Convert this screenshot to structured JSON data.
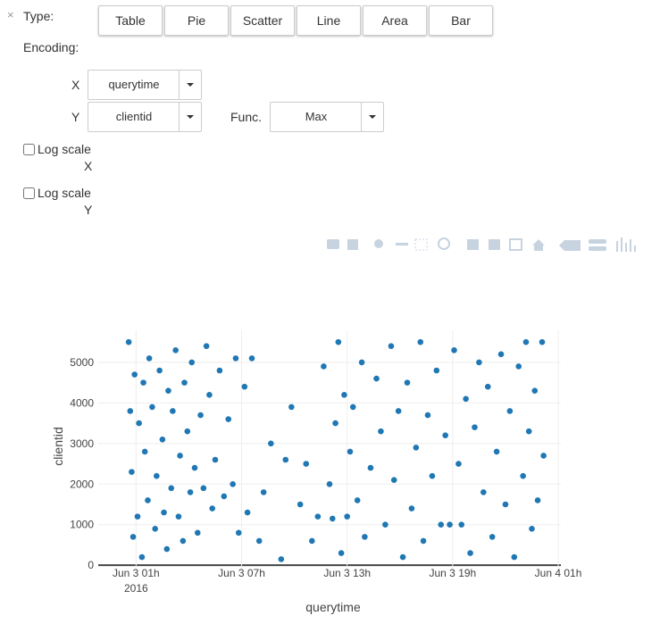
{
  "controls": {
    "close": "×",
    "type_label": "Type:",
    "types": [
      "Table",
      "Pie",
      "Scatter",
      "Line",
      "Area",
      "Bar"
    ],
    "encoding_label": "Encoding:",
    "x_label": "X",
    "x_field": "querytime",
    "y_label": "Y",
    "y_field": "clientid",
    "func_label": "Func.",
    "func": "Max",
    "log_x": [
      "Log scale",
      "X"
    ],
    "log_y": [
      "Log scale",
      "Y"
    ]
  },
  "chart_data": {
    "type": "scatter",
    "x_label": "querytime",
    "y_label": "clientid",
    "color": "#1f77b4",
    "grid": true,
    "xlim": [
      "2016-06-02 22:51",
      "2016-06-04 01:09"
    ],
    "ylim": [
      -150,
      5790
    ],
    "xticks": [
      {
        "value": "2016-06-03 01:00",
        "label": "Jun 3 01h",
        "sublabel": "2016"
      },
      {
        "value": "2016-06-03 07:00",
        "label": "Jun 3 07h"
      },
      {
        "value": "2016-06-03 13:00",
        "label": "Jun 3 13h"
      },
      {
        "value": "2016-06-03 19:00",
        "label": "Jun 3 19h"
      },
      {
        "value": "2016-06-04 01:00",
        "label": "Jun 4 01h"
      }
    ],
    "yticks": [
      0,
      1000,
      2000,
      3000,
      4000,
      5000
    ],
    "x": [
      "2016-06-03 00:35",
      "2016-06-03 00:40",
      "2016-06-03 00:45",
      "2016-06-03 00:50",
      "2016-06-03 00:55",
      "2016-06-03 01:05",
      "2016-06-03 01:10",
      "2016-06-03 01:20",
      "2016-06-03 01:25",
      "2016-06-03 01:30",
      "2016-06-03 01:40",
      "2016-06-03 01:45",
      "2016-06-03 01:55",
      "2016-06-03 02:05",
      "2016-06-03 02:10",
      "2016-06-03 02:20",
      "2016-06-03 02:30",
      "2016-06-03 02:35",
      "2016-06-03 02:45",
      "2016-06-03 02:50",
      "2016-06-03 03:00",
      "2016-06-03 03:05",
      "2016-06-03 03:15",
      "2016-06-03 03:25",
      "2016-06-03 03:30",
      "2016-06-03 03:40",
      "2016-06-03 03:45",
      "2016-06-03 03:55",
      "2016-06-03 04:05",
      "2016-06-03 04:10",
      "2016-06-03 04:20",
      "2016-06-03 04:30",
      "2016-06-03 04:40",
      "2016-06-03 04:50",
      "2016-06-03 05:00",
      "2016-06-03 05:10",
      "2016-06-03 05:20",
      "2016-06-03 05:30",
      "2016-06-03 05:45",
      "2016-06-03 06:00",
      "2016-06-03 06:15",
      "2016-06-03 06:30",
      "2016-06-03 06:40",
      "2016-06-03 06:50",
      "2016-06-03 07:10",
      "2016-06-03 07:20",
      "2016-06-03 07:35",
      "2016-06-03 08:00",
      "2016-06-03 08:15",
      "2016-06-03 08:40",
      "2016-06-03 09:15",
      "2016-06-03 09:30",
      "2016-06-03 09:50",
      "2016-06-03 10:20",
      "2016-06-03 10:40",
      "2016-06-03 11:00",
      "2016-06-03 11:20",
      "2016-06-03 11:40",
      "2016-06-03 12:00",
      "2016-06-03 12:10",
      "2016-06-03 12:20",
      "2016-06-03 12:30",
      "2016-06-03 12:40",
      "2016-06-03 12:50",
      "2016-06-03 13:00",
      "2016-06-03 13:10",
      "2016-06-03 13:20",
      "2016-06-03 13:35",
      "2016-06-03 13:50",
      "2016-06-03 14:00",
      "2016-06-03 14:20",
      "2016-06-03 14:40",
      "2016-06-03 14:55",
      "2016-06-03 15:10",
      "2016-06-03 15:30",
      "2016-06-03 15:40",
      "2016-06-03 15:55",
      "2016-06-03 16:10",
      "2016-06-03 16:25",
      "2016-06-03 16:40",
      "2016-06-03 16:55",
      "2016-06-03 17:10",
      "2016-06-03 17:20",
      "2016-06-03 17:35",
      "2016-06-03 17:50",
      "2016-06-03 18:05",
      "2016-06-03 18:20",
      "2016-06-03 18:35",
      "2016-06-03 18:50",
      "2016-06-03 19:05",
      "2016-06-03 19:20",
      "2016-06-03 19:30",
      "2016-06-03 19:45",
      "2016-06-03 20:00",
      "2016-06-03 20:15",
      "2016-06-03 20:30",
      "2016-06-03 20:45",
      "2016-06-03 21:00",
      "2016-06-03 21:15",
      "2016-06-03 21:30",
      "2016-06-03 21:45",
      "2016-06-03 22:00",
      "2016-06-03 22:15",
      "2016-06-03 22:30",
      "2016-06-03 22:45",
      "2016-06-03 23:00",
      "2016-06-03 23:10",
      "2016-06-03 23:20",
      "2016-06-03 23:30",
      "2016-06-03 23:40",
      "2016-06-03 23:50",
      "2016-06-04 00:05",
      "2016-06-04 00:10"
    ],
    "values": [
      5500,
      3800,
      2300,
      700,
      4700,
      1200,
      3500,
      200,
      4500,
      2800,
      1600,
      5100,
      3900,
      900,
      2200,
      4800,
      3100,
      1300,
      400,
      4300,
      1900,
      3800,
      5300,
      1200,
      2700,
      600,
      4500,
      3300,
      1800,
      5000,
      2400,
      800,
      3700,
      1900,
      5400,
      4200,
      1400,
      2600,
      4800,
      1700,
      3600,
      2000,
      5100,
      800,
      4400,
      1300,
      5100,
      600,
      1800,
      3000,
      150,
      2600,
      3900,
      1500,
      2500,
      600,
      1200,
      4900,
      2000,
      1150,
      3500,
      5500,
      300,
      4200,
      1200,
      2800,
      3900,
      1600,
      5000,
      700,
      2400,
      4600,
      3300,
      1000,
      5400,
      2100,
      3800,
      200,
      4500,
      1400,
      2900,
      5500,
      600,
      3700,
      2200,
      4800,
      1000,
      3200,
      1000,
      5300,
      2500,
      1000,
      4100,
      300,
      3400,
      5000,
      1800,
      4400,
      700,
      2800,
      5200,
      1500,
      3800,
      200,
      4900,
      2200,
      5500,
      3300,
      900,
      4300,
      1600,
      5500,
      2700
    ]
  }
}
